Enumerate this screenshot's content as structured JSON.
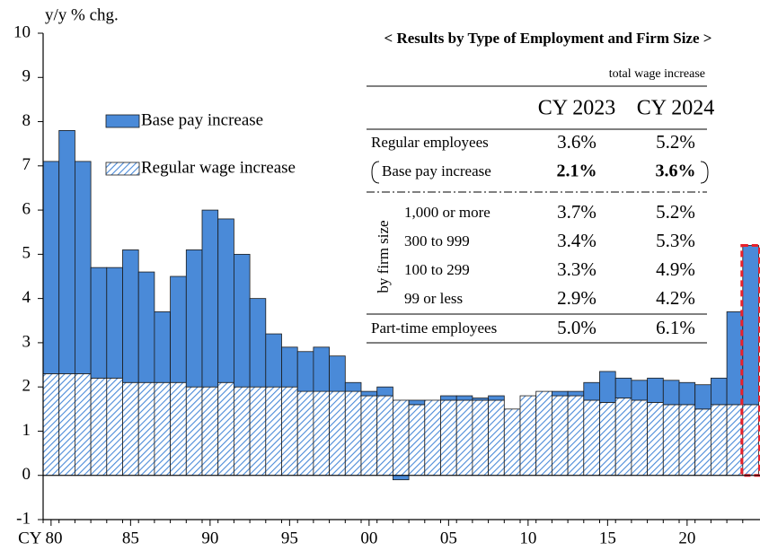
{
  "chart_data": {
    "type": "stacked_bar",
    "y_label": "y/y % chg.",
    "inset_title": "< Results by Type of Employment and Firm Size >",
    "x": [
      1980,
      1981,
      1982,
      1983,
      1984,
      1985,
      1986,
      1987,
      1988,
      1989,
      1990,
      1991,
      1992,
      1993,
      1994,
      1995,
      1996,
      1997,
      1998,
      1999,
      2000,
      2001,
      2002,
      2003,
      2004,
      2005,
      2006,
      2007,
      2008,
      2009,
      2010,
      2011,
      2012,
      2013,
      2014,
      2015,
      2016,
      2017,
      2018,
      2019,
      2020,
      2021,
      2022,
      2023,
      2024
    ],
    "series": [
      {
        "name": "Regular wage increase",
        "color": "#4a8ad8",
        "pattern": "hatch",
        "values": [
          2.3,
          2.3,
          2.3,
          2.2,
          2.2,
          2.1,
          2.1,
          2.1,
          2.1,
          2.0,
          2.0,
          2.1,
          2.0,
          2.0,
          2.0,
          2.0,
          1.9,
          1.9,
          1.9,
          1.9,
          1.8,
          1.8,
          1.7,
          1.6,
          1.7,
          1.7,
          1.7,
          1.7,
          1.7,
          1.5,
          1.8,
          1.9,
          1.8,
          1.8,
          1.7,
          1.65,
          1.75,
          1.7,
          1.65,
          1.6,
          1.6,
          1.5,
          1.6,
          1.6,
          1.6
        ]
      },
      {
        "name": "Base pay increase",
        "color": "#4a8ad8",
        "values": [
          4.8,
          5.5,
          4.8,
          2.5,
          2.5,
          3.0,
          2.5,
          1.6,
          2.4,
          3.1,
          4.0,
          3.7,
          3.0,
          2.0,
          1.2,
          0.9,
          0.9,
          1.0,
          0.8,
          0.2,
          0.1,
          0.2,
          -0.1,
          0.1,
          0.0,
          0.1,
          0.1,
          0.05,
          0.1,
          0.0,
          0.0,
          0.0,
          0.1,
          0.1,
          0.4,
          0.7,
          0.45,
          0.45,
          0.55,
          0.55,
          0.5,
          0.55,
          0.6,
          2.1,
          3.6
        ]
      }
    ],
    "highlight": {
      "x": 2024,
      "color": "#e8202a"
    },
    "xlim": [
      1979.5,
      2024.5
    ],
    "xticks": [
      {
        "value": 1980,
        "label": "CY 80"
      },
      {
        "value": 1985,
        "label": "85"
      },
      {
        "value": 1990,
        "label": "90"
      },
      {
        "value": 1995,
        "label": "95"
      },
      {
        "value": 2000,
        "label": "00"
      },
      {
        "value": 2005,
        "label": "05"
      },
      {
        "value": 2010,
        "label": "10"
      },
      {
        "value": 2015,
        "label": "15"
      },
      {
        "value": 2020,
        "label": "20"
      }
    ],
    "ylim": [
      -1,
      10
    ],
    "yticks": [
      -1,
      0,
      1,
      2,
      3,
      4,
      5,
      6,
      7,
      8,
      9,
      10
    ],
    "table": {
      "note": "total wage increase",
      "columns": [
        "CY 2023",
        "CY 2024"
      ],
      "group_label": "by firm size",
      "rows": [
        [
          "Regular employees",
          "3.6%",
          "5.2%"
        ],
        [
          "Base pay increase",
          "2.1%",
          "3.6%"
        ],
        [
          "1,000 or more",
          "3.7%",
          "5.2%"
        ],
        [
          "300 to 999",
          "3.4%",
          "5.3%"
        ],
        [
          "100 to 299",
          "3.3%",
          "4.9%"
        ],
        [
          "99 or less",
          "2.9%",
          "4.2%"
        ],
        [
          "Part-time employees",
          "5.0%",
          "6.1%"
        ]
      ]
    }
  }
}
